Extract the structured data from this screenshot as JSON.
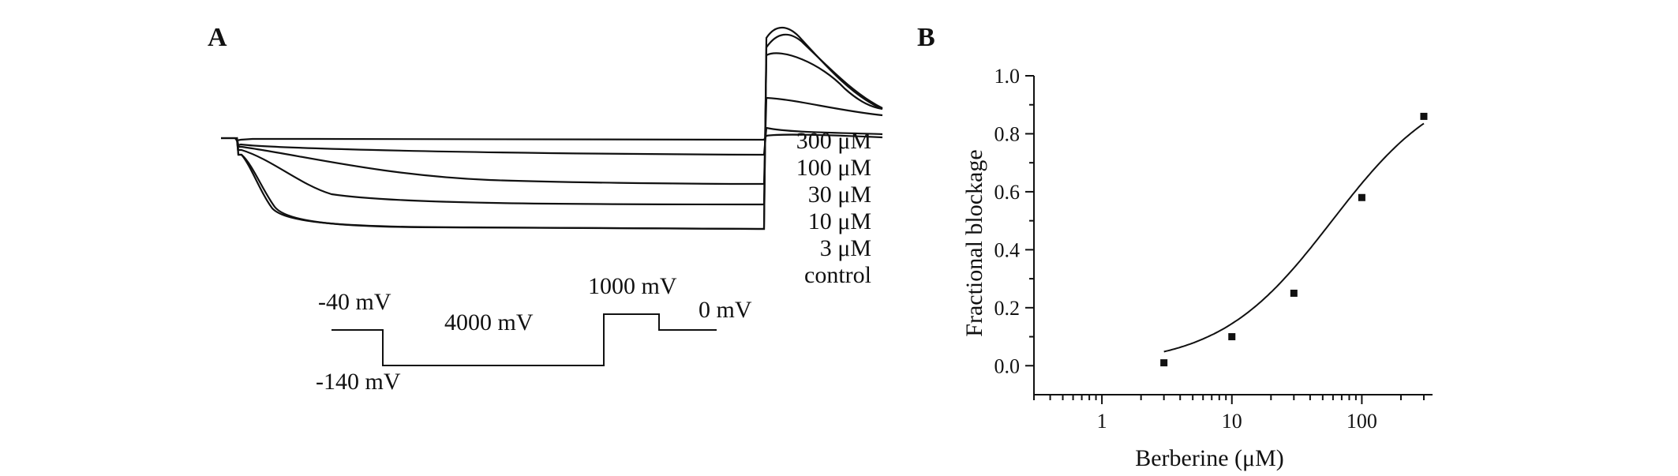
{
  "panels": {
    "a": {
      "letter": "A",
      "concentration_labels": [
        "300 μM",
        "100 μM",
        "30 μM",
        "10 μM",
        "3 μM",
        "control"
      ],
      "protocol": {
        "steps_mV": [
          -40,
          -140,
          0
        ],
        "step_labels": [
          "-40 mV",
          "-140 mV",
          "4000 mV",
          "1000 mV",
          "0 mV"
        ]
      }
    },
    "b": {
      "letter": "B"
    }
  },
  "chart_data": {
    "type": "scatter",
    "x_scale": "log",
    "xlabel": "Berberine (μM)",
    "ylabel": "Fractional blockage",
    "xlim": [
      0.3,
      350
    ],
    "ylim": [
      -0.1,
      1.0
    ],
    "x_ticks": [
      1,
      10,
      100
    ],
    "x_tick_labels": [
      "1",
      "10",
      "100"
    ],
    "y_ticks": [
      0.0,
      0.2,
      0.4,
      0.6,
      0.8,
      1.0
    ],
    "y_tick_labels": [
      "0.0",
      "0.2",
      "0.4",
      "0.6",
      "0.8",
      "1.0"
    ],
    "grid": false,
    "series": [
      {
        "x": [
          3,
          10,
          30,
          100,
          300
        ],
        "y": [
          0.01,
          0.1,
          0.25,
          0.58,
          0.86
        ],
        "fit": {
          "model": "hill",
          "ic50": 59,
          "n": 1.0
        }
      }
    ],
    "color": "#111111"
  }
}
